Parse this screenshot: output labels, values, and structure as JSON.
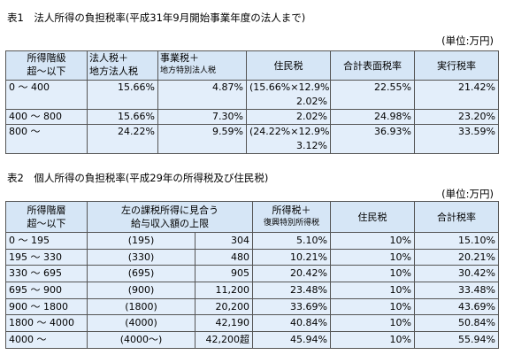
{
  "table1": {
    "title": "表1　法人所得の負担税率(平成31年9月開始事業年度の法人まで)",
    "unit": "(単位:万円)",
    "header": [
      [
        "所得階級",
        "超～以下"
      ],
      [
        "法人税＋",
        "地方法人税"
      ],
      [
        "事業税＋",
        "地方特別法人税"
      ],
      [
        "住民税"
      ],
      [
        "合計表面税率"
      ],
      [
        "実行税率"
      ]
    ],
    "rows": [
      [
        [
          "0 ～ 400"
        ],
        [
          "15.66%"
        ],
        [
          "4.87%"
        ],
        [
          "(15.66%×12.9%",
          "2.02%"
        ],
        [
          "22.55%"
        ],
        [
          "21.42%"
        ]
      ],
      [
        [
          "400 ～ 800"
        ],
        [
          "15.66%"
        ],
        [
          "7.30%"
        ],
        [
          "2.02%"
        ],
        [
          "24.98%"
        ],
        [
          "23.20%"
        ]
      ],
      [
        [
          "800 ～"
        ],
        [
          "24.22%"
        ],
        [
          "9.59%"
        ],
        [
          "(24.22%×12.9%",
          "3.12%"
        ],
        [
          "36.93%"
        ],
        [
          "33.59%"
        ]
      ]
    ]
  },
  "table2": {
    "title": "表2　個人所得の負担税率(平成29年の所得税及び住民税)",
    "unit": "(単位:万円)",
    "header": [
      [
        "所得階層",
        "超～以下"
      ],
      [
        "左の課税所得に見合う",
        "給与収入額の上限"
      ],
      [
        "所得税＋",
        "復興特別所得税"
      ],
      [
        "住民税"
      ],
      [
        "合計税率"
      ]
    ],
    "rows": [
      [
        "0 ～ 195",
        "(195)",
        "304",
        "5.10%",
        "10%",
        "15.10%"
      ],
      [
        "195 ～ 330",
        "(330)",
        "480",
        "10.21%",
        "10%",
        "20.21%"
      ],
      [
        "330 ～ 695",
        "(695)",
        "905",
        "20.42%",
        "10%",
        "30.42%"
      ],
      [
        "695 ～ 900",
        "(900)",
        "11,200",
        "23.48%",
        "10%",
        "33.48%"
      ],
      [
        "900 ～ 1800",
        "(1800)",
        "20,200",
        "33.69%",
        "10%",
        "43.69%"
      ],
      [
        "1800 ～ 4000",
        "(4000)",
        "42,190",
        "40.84%",
        "10%",
        "50.84%"
      ],
      [
        "4000 ～",
        "(4000～)",
        "42,200超",
        "45.94%",
        "10%",
        "55.94%"
      ]
    ]
  }
}
